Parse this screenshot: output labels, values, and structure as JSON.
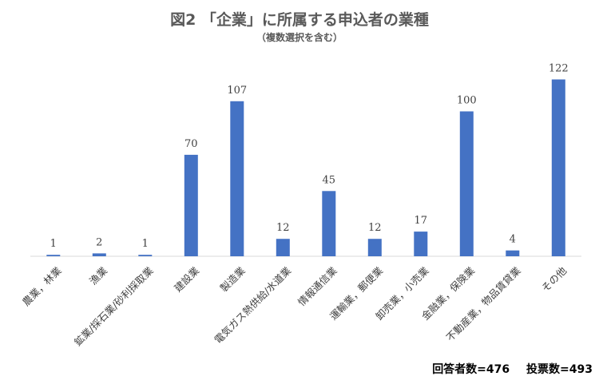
{
  "header": {
    "title": "図2 「企業」に所属する申込者の業種",
    "subtitle": "（複数選択を含む）"
  },
  "footer": {
    "respondents": "回答者数=476",
    "votes": "投票数=493"
  },
  "colors": {
    "bar": "#4472c4",
    "axis": "#d9d9d9",
    "label": "#404040"
  },
  "chart_data": {
    "type": "bar",
    "title": "図2 「企業」に所属する申込者の業種",
    "subtitle": "（複数選択を含む）",
    "categories": [
      "農業，林業",
      "漁業",
      "鉱業/採石業/砂利採取業",
      "建設業",
      "製造業",
      "電気ガス熱供給/水道業",
      "情報通信業",
      "運輸業，郵便業",
      "卸売業，小売業",
      "金融業，保険業",
      "不動産業，物品賃貸業",
      "その他"
    ],
    "values": [
      1,
      2,
      1,
      70,
      107,
      12,
      45,
      12,
      17,
      100,
      4,
      122
    ],
    "data_labels": true,
    "ylim": [
      0,
      130
    ],
    "grid": false,
    "legend": "none"
  }
}
